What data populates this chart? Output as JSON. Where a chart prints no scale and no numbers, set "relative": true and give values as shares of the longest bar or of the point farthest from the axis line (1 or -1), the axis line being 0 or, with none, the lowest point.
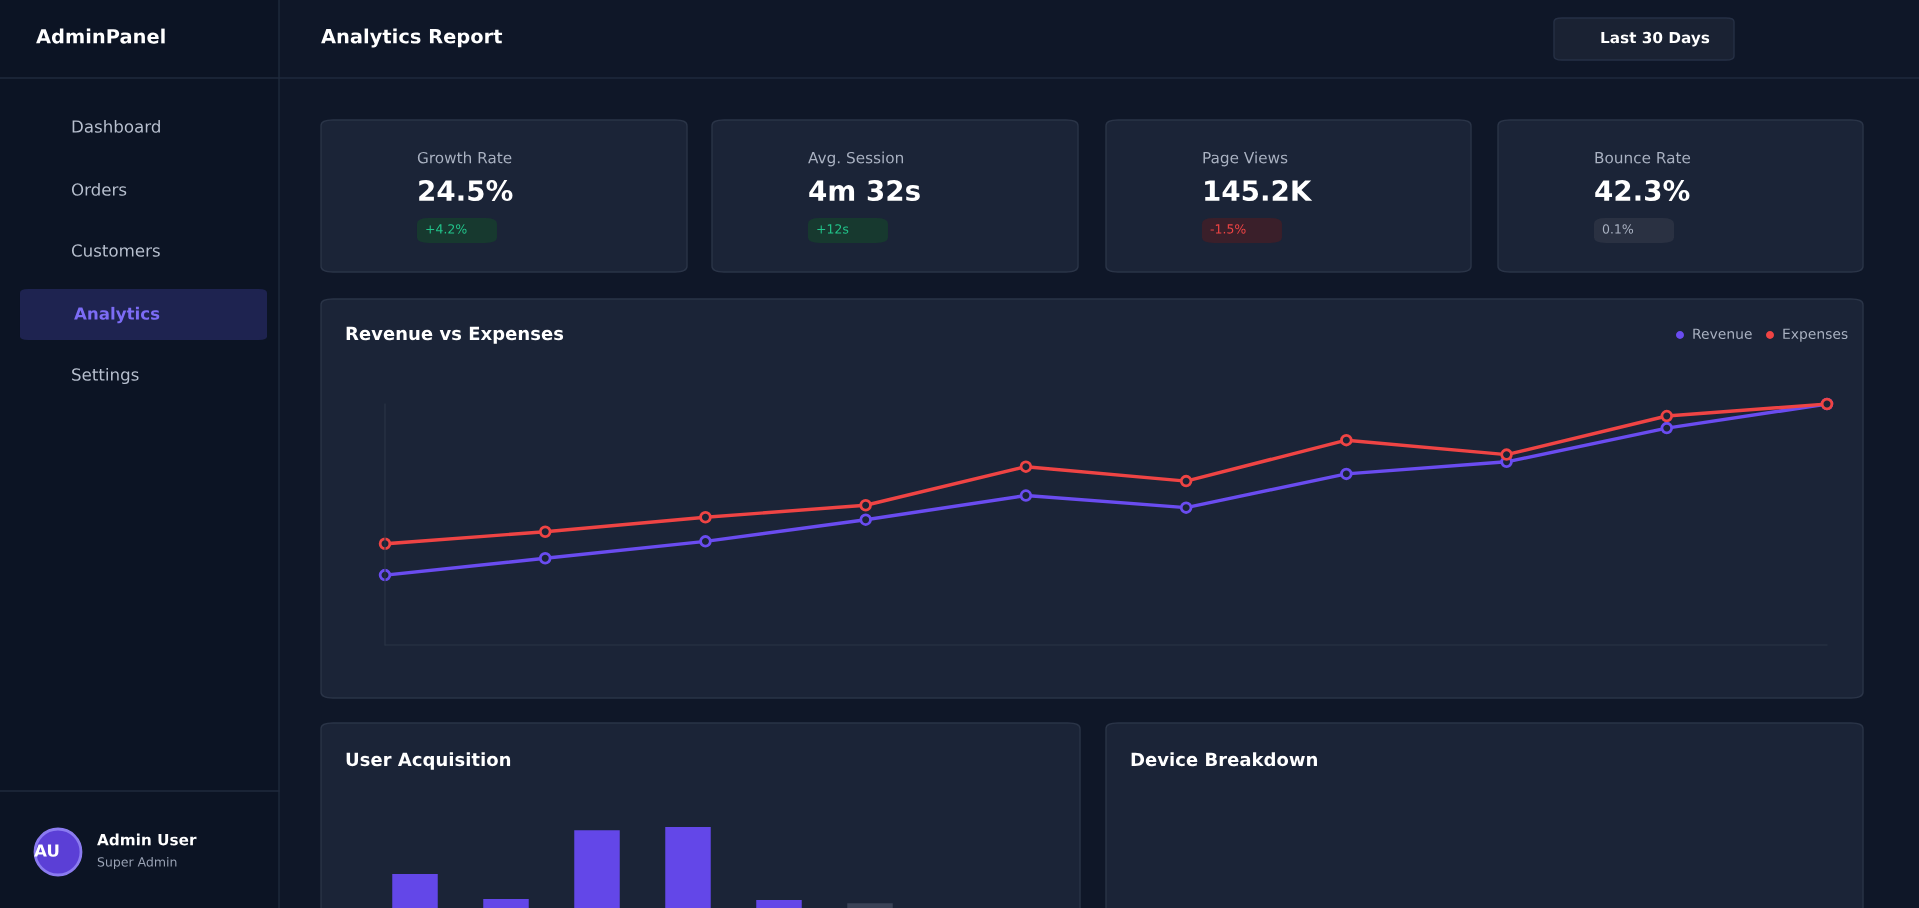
{
  "chart_data": [
    {
      "type": "other",
      "annotations": [
        "AdminPanel",
        "Dashboard",
        "Orders",
        "Customers",
        "Analytics",
        "Settings",
        "AU",
        "Admin User",
        "Super Admin",
        "Analytics Report",
        "Last 30 Days",
        "Growth Rate",
        "24.5%",
        "+4.2%",
        "Avg. Session",
        "4m 32s",
        "+12s",
        "Page Views",
        "145.2K",
        "-1.5%",
        "Bounce Rate",
        "42.3%",
        "0.1%",
        "Device Breakdown"
      ]
    },
    {
      "type": "line",
      "title": "Revenue vs Expenses",
      "relative": true,
      "legend": "top right",
      "marker": "circle",
      "categories": [
        null,
        null,
        null,
        null,
        null,
        null,
        null,
        null,
        null,
        null
      ],
      "series": [
        {
          "name": "Revenue",
          "color": "#6a4cf0",
          "values": [
            0.29,
            0.36,
            0.43,
            0.52,
            0.62,
            0.57,
            0.71,
            0.76,
            0.9,
            1
          ]
        },
        {
          "name": "Expenses",
          "color": "#ef4444",
          "values": [
            0.42,
            0.47,
            0.53,
            0.58,
            0.74,
            0.68,
            0.85,
            0.79,
            0.95,
            1
          ]
        }
      ]
    },
    {
      "type": "bar",
      "title": "User Acquisition",
      "relative": true,
      "categories": [
        null,
        null,
        null,
        null,
        null,
        null
      ],
      "values": [
        0.42,
        0.11,
        0.96,
        1,
        0.1,
        0.06
      ],
      "colors": [
        "#6347e8",
        "#6347e8",
        "#6347e8",
        "#6347e8",
        "#6347e8",
        "#3a4256"
      ]
    }
  ]
}
